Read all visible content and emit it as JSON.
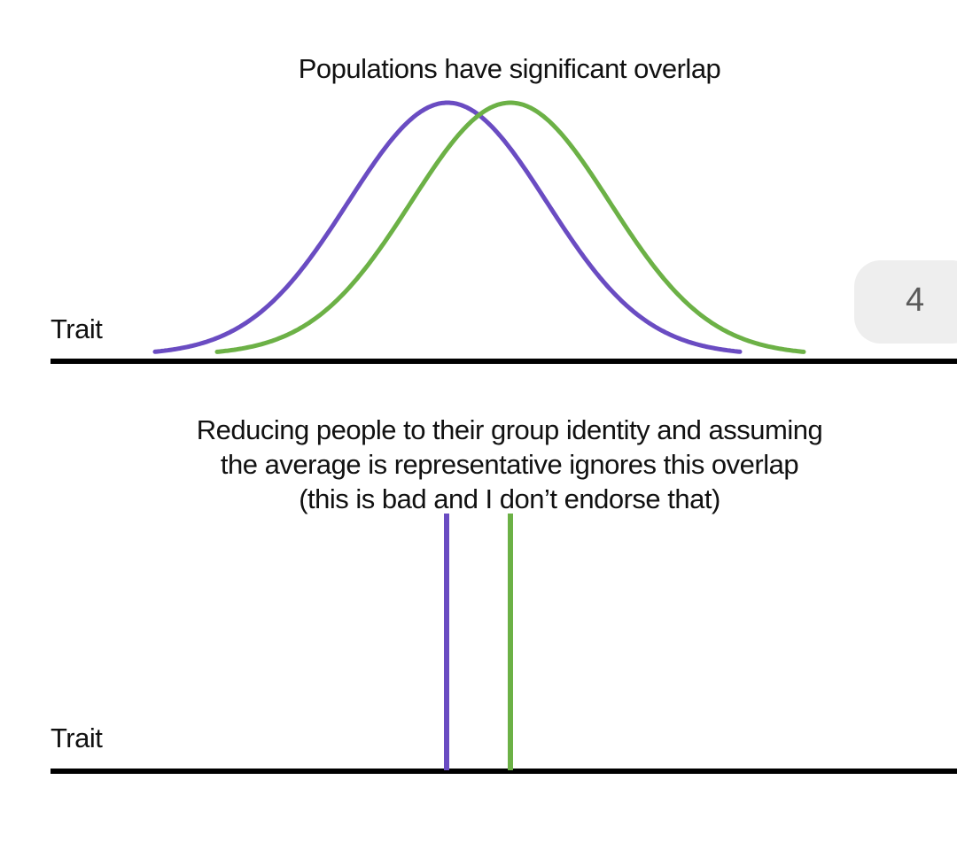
{
  "figure": {
    "top_panel": {
      "title": "Populations have significant overlap",
      "axis_label": "Trait"
    },
    "bottom_panel": {
      "caption_lines": [
        "Reducing people to their group identity and assuming",
        "the average is representative ignores this overlap",
        "(this is bad and I don’t endorse that)"
      ],
      "axis_label": "Trait"
    },
    "colors": {
      "purple": "#6a4cc2",
      "green": "#6cb146",
      "axis": "#000000"
    }
  },
  "page_badge": {
    "number": "4"
  }
}
